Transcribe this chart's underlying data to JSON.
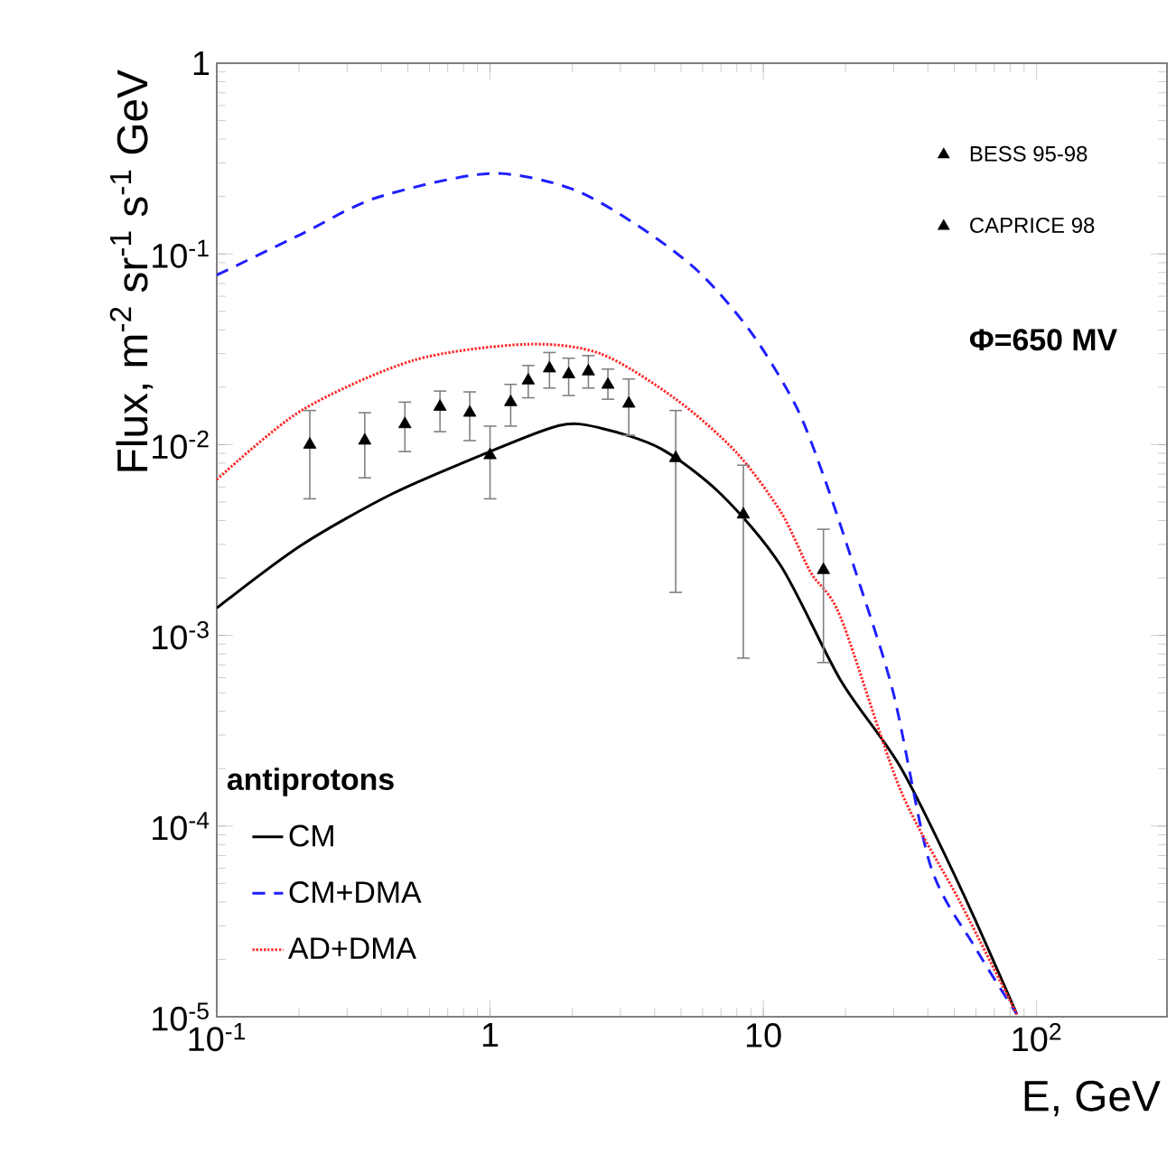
{
  "chart_data": {
    "type": "line",
    "xlabel": "E, GeV",
    "ylabel": "Flux, m$^{-2}$ sr$^{-1}$ s$^{-1}$ GeV",
    "log": "xy",
    "xlim": [
      0.1,
      300
    ],
    "ylim": [
      1e-05,
      1
    ],
    "xticks": [
      {
        "value": 0.1,
        "label": "10$^{-1}$"
      },
      1,
      10,
      {
        "value": 100,
        "label": "10$^{2}$"
      }
    ],
    "yticks": [
      {
        "value": 1e-05,
        "label": "10$^{-5}$"
      },
      {
        "value": 0.0001,
        "label": "10$^{-4}$"
      },
      {
        "value": 0.001,
        "label": "10$^{-3}$"
      },
      {
        "value": 0.01,
        "label": "10$^{-2}$"
      },
      {
        "value": 0.1,
        "label": "10$^{-1}$"
      },
      1
    ],
    "legend": "bottom left",
    "legend_title": "antiprotons",
    "grid": false,
    "annotations": [
      "Φ=650 MV"
    ],
    "series": [
      {
        "name": "CM",
        "color": "#000000",
        "line_style": "solid",
        "x": [
          0.1,
          0.204,
          0.436,
          0.929,
          1.79,
          2.55,
          4.23,
          7.0,
          11.6,
          19.2,
          31.8,
          52.7,
          84.7
        ],
        "values": [
          0.00139,
          0.00297,
          0.0055,
          0.0088,
          0.0126,
          0.0122,
          0.0095,
          0.0055,
          0.00231,
          0.00058,
          0.000203,
          4.74e-05,
          1.03e-05
        ]
      },
      {
        "name": "CM+DMA",
        "color": "#1f1fff",
        "line_style": "dashed",
        "x": [
          0.1,
          0.204,
          0.384,
          0.99,
          1.98,
          3.49,
          5.78,
          9.0,
          13.2,
          16.9,
          21.8,
          29.9,
          40.9,
          59.8,
          84.7
        ],
        "values": [
          0.0774,
          0.127,
          0.197,
          0.264,
          0.22,
          0.14,
          0.081,
          0.039,
          0.0158,
          0.0064,
          0.00214,
          0.0005,
          6.2e-05,
          2.29e-05,
          1.03e-05
        ]
      },
      {
        "name": "AD+DMA",
        "color": "#ff2a2a",
        "line_style": "dotted",
        "x": [
          0.1,
          0.204,
          0.526,
          1.36,
          2.55,
          4.79,
          7.93,
          11.6,
          14.9,
          19.2,
          31.8,
          52.7,
          84.7
        ],
        "values": [
          0.00655,
          0.0151,
          0.0277,
          0.0336,
          0.0299,
          0.0173,
          0.00917,
          0.00443,
          0.00214,
          0.00124,
          0.000154,
          3.95e-05,
          1.03e-05
        ]
      },
      {
        "name": "BESS 95-98",
        "type": "scatter",
        "marker": "triangle",
        "color": "#000000",
        "x": [
          0.219,
          0.348,
          0.488,
          0.656,
          0.843,
          1.0,
          1.19,
          1.38,
          1.65,
          1.94,
          2.29,
          2.7,
          3.22
        ],
        "values": [
          0.01,
          0.0105,
          0.0128,
          0.0158,
          0.0147,
          0.0088,
          0.0167,
          0.0217,
          0.0251,
          0.0234,
          0.0242,
          0.0206,
          0.0164
        ],
        "errors": [
          [
            0.0052,
            0.0151
          ],
          [
            0.0067,
            0.0147
          ],
          [
            0.0092,
            0.0167
          ],
          [
            0.0117,
            0.0191
          ],
          [
            0.0105,
            0.0189
          ],
          [
            0.0052,
            0.0125
          ],
          [
            0.0125,
            0.0207
          ],
          [
            0.0176,
            0.026
          ],
          [
            0.0198,
            0.0304
          ],
          [
            0.0181,
            0.0284
          ],
          [
            0.0198,
            0.0293
          ],
          [
            0.0173,
            0.0249
          ],
          [
            0.0112,
            0.0221
          ]
        ]
      },
      {
        "name": "CAPRICE 98",
        "type": "scatter",
        "marker": "triangle",
        "color": "#000000",
        "x": [
          4.78,
          8.45,
          16.6
        ],
        "values": [
          0.0085,
          0.0043,
          0.0022
        ],
        "errors": [
          [
            0.00168,
            0.0151
          ],
          [
            0.00076,
            0.0078
          ],
          [
            0.00072,
            0.0036
          ]
        ]
      }
    ]
  }
}
